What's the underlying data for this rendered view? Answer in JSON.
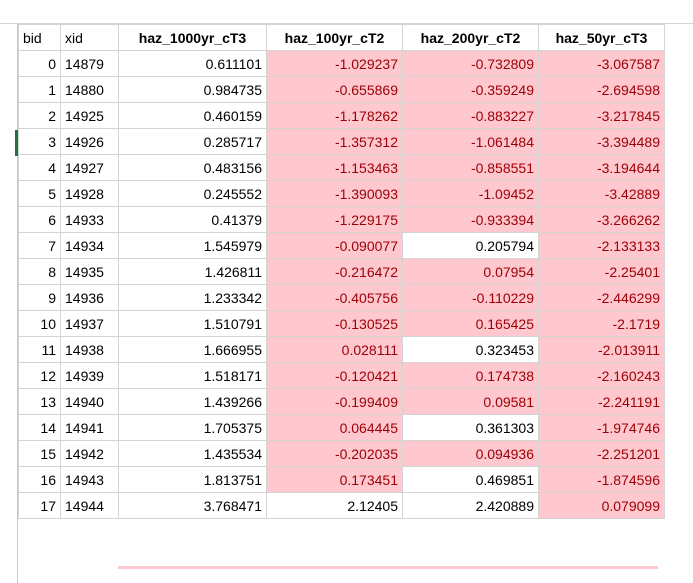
{
  "columns": [
    "bid",
    "xid",
    "haz_1000yr_cT3",
    "haz_100yr_cT2",
    "haz_200yr_cT2",
    "haz_50yr_cT3"
  ],
  "highlight": {
    "fill": "#ffc7ce",
    "text": "#9c0006"
  },
  "rows": [
    {
      "bid": "0",
      "xid": "14879",
      "h1000": "0.611101",
      "h100": "-1.029237",
      "h200": "-0.732809",
      "h50": "-3.067587"
    },
    {
      "bid": "1",
      "xid": "14880",
      "h1000": "0.984735",
      "h100": "-0.655869",
      "h200": "-0.359249",
      "h50": "-2.694598"
    },
    {
      "bid": "2",
      "xid": "14925",
      "h1000": "0.460159",
      "h100": "-1.178262",
      "h200": "-0.883227",
      "h50": "-3.217845"
    },
    {
      "bid": "3",
      "xid": "14926",
      "h1000": "0.285717",
      "h100": "-1.357312",
      "h200": "-1.061484",
      "h50": "-3.394489"
    },
    {
      "bid": "4",
      "xid": "14927",
      "h1000": "0.483156",
      "h100": "-1.153463",
      "h200": "-0.858551",
      "h50": "-3.194644"
    },
    {
      "bid": "5",
      "xid": "14928",
      "h1000": "0.245552",
      "h100": "-1.390093",
      "h200": "-1.09452",
      "h50": "-3.42889"
    },
    {
      "bid": "6",
      "xid": "14933",
      "h1000": "0.41379",
      "h100": "-1.229175",
      "h200": "-0.933394",
      "h50": "-3.266262"
    },
    {
      "bid": "7",
      "xid": "14934",
      "h1000": "1.545979",
      "h100": "-0.090077",
      "h200": "0.205794",
      "h50": "-2.133133"
    },
    {
      "bid": "8",
      "xid": "14935",
      "h1000": "1.426811",
      "h100": "-0.216472",
      "h200": "0.07954",
      "h50": "-2.25401"
    },
    {
      "bid": "9",
      "xid": "14936",
      "h1000": "1.233342",
      "h100": "-0.405756",
      "h200": "-0.110229",
      "h50": "-2.446299"
    },
    {
      "bid": "10",
      "xid": "14937",
      "h1000": "1.510791",
      "h100": "-0.130525",
      "h200": "0.165425",
      "h50": "-2.1719"
    },
    {
      "bid": "11",
      "xid": "14938",
      "h1000": "1.666955",
      "h100": "0.028111",
      "h200": "0.323453",
      "h50": "-2.013911"
    },
    {
      "bid": "12",
      "xid": "14939",
      "h1000": "1.518171",
      "h100": "-0.120421",
      "h200": "0.174738",
      "h50": "-2.160243"
    },
    {
      "bid": "13",
      "xid": "14940",
      "h1000": "1.439266",
      "h100": "-0.199409",
      "h200": "0.09581",
      "h50": "-2.241191"
    },
    {
      "bid": "14",
      "xid": "14941",
      "h1000": "1.705375",
      "h100": "0.064445",
      "h200": "0.361303",
      "h50": "-1.974746"
    },
    {
      "bid": "15",
      "xid": "14942",
      "h1000": "1.435534",
      "h100": "-0.202035",
      "h200": "0.094936",
      "h50": "-2.251201"
    },
    {
      "bid": "16",
      "xid": "14943",
      "h1000": "1.813751",
      "h100": "0.173451",
      "h200": "0.469851",
      "h50": "-1.874596"
    },
    {
      "bid": "17",
      "xid": "14944",
      "h1000": "3.768471",
      "h100": "2.12405",
      "h200": "2.420889",
      "h50": "0.079099"
    }
  ],
  "highlighted": [
    [
      false,
      false,
      false,
      true,
      true,
      true
    ],
    [
      false,
      false,
      false,
      true,
      true,
      true
    ],
    [
      false,
      false,
      false,
      true,
      true,
      true
    ],
    [
      false,
      false,
      false,
      true,
      true,
      true
    ],
    [
      false,
      false,
      false,
      true,
      true,
      true
    ],
    [
      false,
      false,
      false,
      true,
      true,
      true
    ],
    [
      false,
      false,
      false,
      true,
      true,
      true
    ],
    [
      false,
      false,
      false,
      true,
      false,
      true
    ],
    [
      false,
      false,
      false,
      true,
      true,
      true
    ],
    [
      false,
      false,
      false,
      true,
      true,
      true
    ],
    [
      false,
      false,
      false,
      true,
      true,
      true
    ],
    [
      false,
      false,
      false,
      true,
      false,
      true
    ],
    [
      false,
      false,
      false,
      true,
      true,
      true
    ],
    [
      false,
      false,
      false,
      true,
      true,
      true
    ],
    [
      false,
      false,
      false,
      true,
      false,
      true
    ],
    [
      false,
      false,
      false,
      true,
      true,
      true
    ],
    [
      false,
      false,
      false,
      true,
      false,
      true
    ],
    [
      false,
      false,
      false,
      false,
      false,
      true
    ]
  ]
}
